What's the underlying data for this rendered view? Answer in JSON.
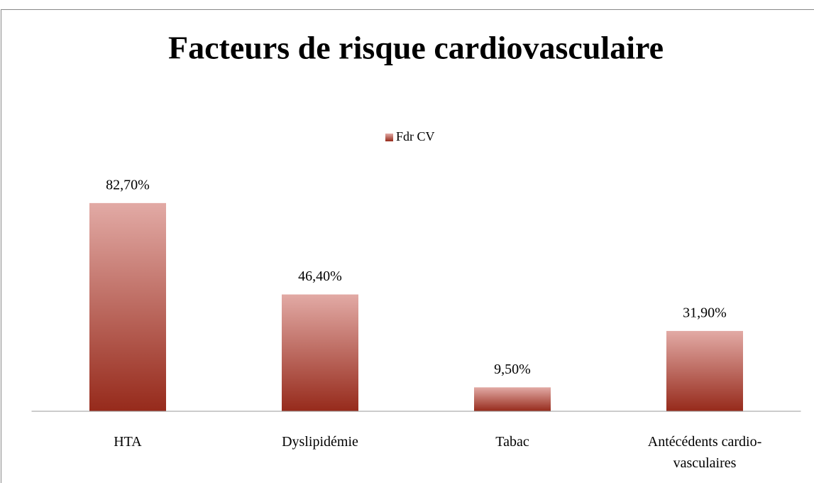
{
  "chart_data": {
    "type": "bar",
    "title": "Facteurs de risque cardiovasculaire",
    "categories": [
      "HTA",
      "Dyslipidémie",
      "Tabac",
      "Antécédents cardio-vasculaires"
    ],
    "series": [
      {
        "name": "Fdr CV",
        "color": "#962a1b",
        "gradient_top": "#e2aaa5",
        "values": [
          82.7,
          46.4,
          9.5,
          31.9
        ],
        "value_labels": [
          "82,70%",
          "46,40%",
          "9,50%",
          "31,90%"
        ]
      }
    ],
    "ylim": [
      0,
      90
    ],
    "legend": "top"
  }
}
